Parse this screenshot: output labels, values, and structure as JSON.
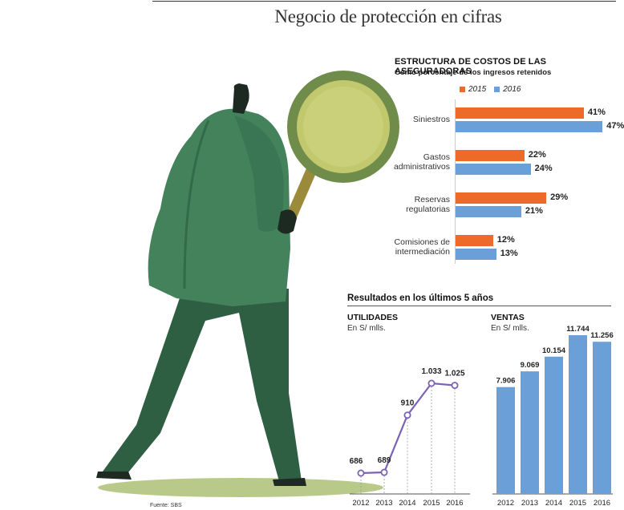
{
  "title": "Negocio de protección en cifras",
  "source": "Fuente: SBS",
  "colors": {
    "c2015": "#ee6a28",
    "c2016": "#6b9fd8",
    "line": "#7c62b4",
    "ventas": "#6b9fd8",
    "figure": "#3f7a55",
    "glass": "#c2c86e"
  },
  "results_title": "Resultados en los últimos 5 años",
  "chart_data": [
    {
      "type": "bar",
      "orientation": "horizontal",
      "title": "ESTRUCTURA DE COSTOS DE LAS ASEGURADORAS",
      "subtitle": "Como porcentaje de los ingresos retenidos",
      "categories": [
        "Siniestros",
        "Gastos administrativos",
        "Reservas regulatorias",
        "Comisiones de intermediación"
      ],
      "category_labels": [
        "Siniestros",
        "Gastos\nadministrativos",
        "Reservas\nregulatorias",
        "Comisiones de\nintermediación"
      ],
      "series": [
        {
          "name": "2015",
          "values": [
            41,
            22,
            29,
            12
          ],
          "labels": [
            "41%",
            "22%",
            "29%",
            "12%"
          ]
        },
        {
          "name": "2016",
          "values": [
            47,
            24,
            21,
            13
          ],
          "labels": [
            "47%",
            "24%",
            "21%",
            "13%"
          ]
        }
      ],
      "legend": "top",
      "unit": "%"
    },
    {
      "type": "line",
      "title": "UTILIDADES",
      "ylabel": "En S/ mlls.",
      "x": [
        "2012",
        "2013",
        "2014",
        "2015",
        "2016"
      ],
      "values": [
        686,
        689,
        910,
        1033,
        1025
      ],
      "labels": [
        "686",
        "689",
        "910",
        "1.033",
        "1.025"
      ],
      "grid": "vertical dashed"
    },
    {
      "type": "bar",
      "title": "VENTAS",
      "ylabel": "En S/ mlls.",
      "categories": [
        "2012",
        "2013",
        "2014",
        "2015",
        "2016"
      ],
      "values": [
        7906,
        9069,
        10154,
        11744,
        11256
      ],
      "labels": [
        "7.906",
        "9.069",
        "10.154",
        "11.744",
        "11.256"
      ]
    }
  ]
}
